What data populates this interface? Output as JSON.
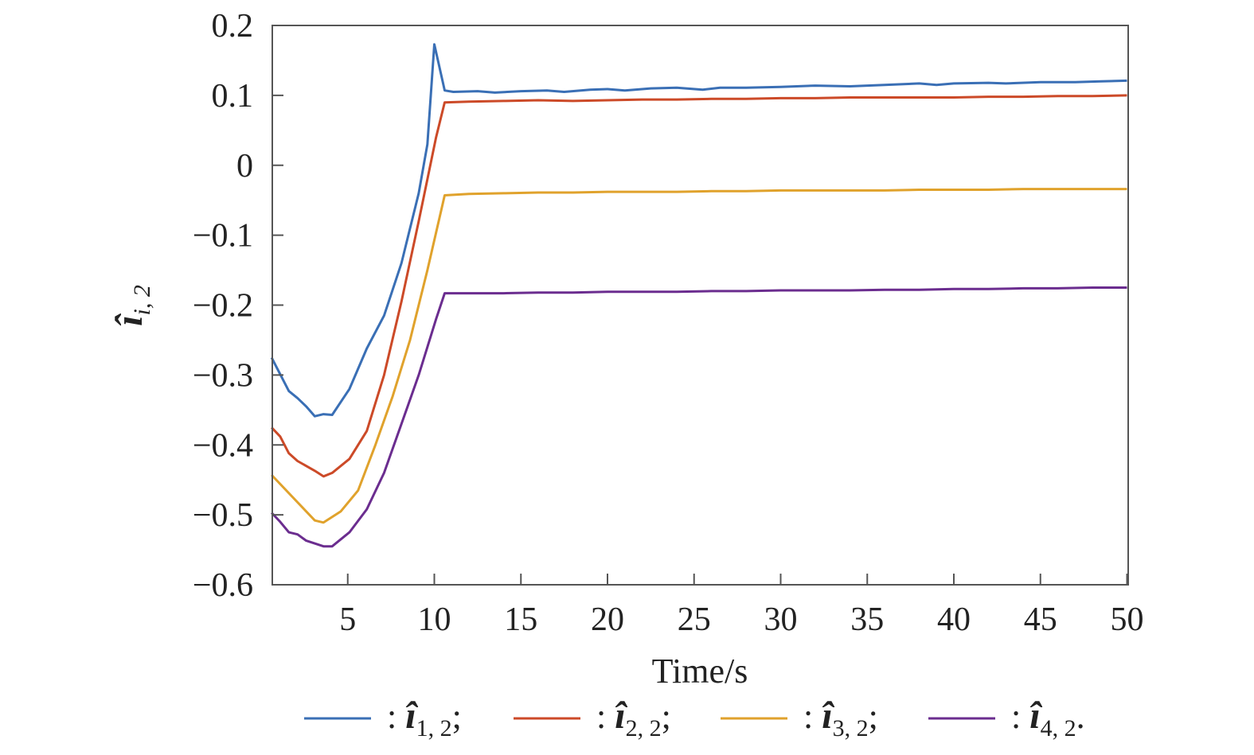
{
  "chart_data": {
    "type": "line",
    "title": "",
    "xlabel": "Time/s",
    "ylabel": {
      "symbol": "î",
      "subscript": "i, 2"
    },
    "xlim": [
      0.6,
      50
    ],
    "ylim": [
      -0.6,
      0.2
    ],
    "xticks": [
      5,
      10,
      15,
      20,
      25,
      30,
      35,
      40,
      45,
      50
    ],
    "xtick_labels": [
      "5",
      "10",
      "15",
      "20",
      "25",
      "30",
      "35",
      "40",
      "45",
      "50"
    ],
    "yticks": [
      0.2,
      0.1,
      0,
      -0.1,
      -0.2,
      -0.3,
      -0.4,
      -0.5,
      -0.6
    ],
    "ytick_labels": [
      "0.2",
      "0.1",
      "0",
      "−0.1",
      "−0.2",
      "−0.3",
      "−0.4",
      "−0.5",
      "−0.6"
    ],
    "grid": false,
    "legend_position": "bottom",
    "series": [
      {
        "name": "î_{1,2}",
        "legend_sep": ":",
        "legend_symbol": "î",
        "legend_sub": "1, 2",
        "legend_end": ";",
        "color": "#3a6fb5",
        "x": [
          0.6,
          1.6,
          2.1,
          2.6,
          3.1,
          3.6,
          4.1,
          5.1,
          6.1,
          7.1,
          8.1,
          9.1,
          9.6,
          10.0,
          10.6,
          11.1,
          12.5,
          13.5,
          15,
          16.5,
          17.5,
          19,
          20,
          21,
          22.5,
          24,
          25.5,
          26.5,
          28,
          30,
          32,
          34,
          36,
          38,
          39,
          40,
          42,
          43,
          45,
          47,
          48.5,
          50
        ],
        "y": [
          -0.275,
          -0.323,
          -0.333,
          -0.345,
          -0.359,
          -0.356,
          -0.357,
          -0.32,
          -0.262,
          -0.215,
          -0.14,
          -0.04,
          0.03,
          0.173,
          0.107,
          0.105,
          0.106,
          0.104,
          0.106,
          0.107,
          0.105,
          0.108,
          0.109,
          0.107,
          0.11,
          0.111,
          0.108,
          0.111,
          0.111,
          0.112,
          0.114,
          0.113,
          0.115,
          0.117,
          0.115,
          0.117,
          0.118,
          0.117,
          0.119,
          0.119,
          0.12,
          0.121
        ]
      },
      {
        "name": "î_{2,2}",
        "legend_sep": ":",
        "legend_symbol": "î",
        "legend_sub": "2, 2",
        "legend_end": ";",
        "color": "#cc4a28",
        "x": [
          0.6,
          1.1,
          1.6,
          2.1,
          3.1,
          3.6,
          4.1,
          5.1,
          6.1,
          7.1,
          8.1,
          9.1,
          10.1,
          10.6,
          12,
          14,
          16,
          18,
          20,
          22,
          24,
          26,
          28,
          30,
          32,
          34,
          36,
          38,
          40,
          42,
          44,
          46,
          48,
          50
        ],
        "y": [
          -0.375,
          -0.388,
          -0.412,
          -0.423,
          -0.437,
          -0.445,
          -0.44,
          -0.42,
          -0.38,
          -0.3,
          -0.195,
          -0.08,
          0.04,
          0.09,
          0.091,
          0.092,
          0.093,
          0.092,
          0.093,
          0.094,
          0.094,
          0.095,
          0.095,
          0.096,
          0.096,
          0.097,
          0.097,
          0.097,
          0.097,
          0.098,
          0.098,
          0.099,
          0.099,
          0.1
        ]
      },
      {
        "name": "î_{3,2}",
        "legend_sep": ":",
        "legend_symbol": "î",
        "legend_sub": "3, 2",
        "legend_end": ";",
        "color": "#e0a22c",
        "x": [
          0.6,
          3.1,
          3.6,
          4.6,
          5.6,
          6.6,
          7.6,
          8.6,
          9.6,
          10.6,
          12,
          14,
          16,
          18,
          20,
          22,
          24,
          26,
          28,
          30,
          32,
          34,
          36,
          38,
          40,
          42,
          44,
          46,
          48,
          50
        ],
        "y": [
          -0.443,
          -0.508,
          -0.511,
          -0.495,
          -0.465,
          -0.4,
          -0.33,
          -0.25,
          -0.15,
          -0.043,
          -0.041,
          -0.04,
          -0.039,
          -0.039,
          -0.038,
          -0.038,
          -0.038,
          -0.037,
          -0.037,
          -0.036,
          -0.036,
          -0.036,
          -0.036,
          -0.035,
          -0.035,
          -0.035,
          -0.034,
          -0.034,
          -0.034,
          -0.034
        ]
      },
      {
        "name": "î_{4,2}",
        "legend_sep": ":",
        "legend_symbol": "î",
        "legend_sub": "4, 2",
        "legend_end": ".",
        "color": "#6b2d8f",
        "x": [
          0.6,
          1.1,
          1.6,
          2.1,
          2.6,
          3.6,
          4.1,
          5.1,
          6.1,
          7.1,
          8.1,
          9.1,
          10.1,
          10.6,
          12,
          14,
          16,
          18,
          20,
          22,
          24,
          26,
          28,
          30,
          32,
          34,
          36,
          38,
          40,
          42,
          44,
          46,
          48,
          50
        ],
        "y": [
          -0.497,
          -0.51,
          -0.525,
          -0.528,
          -0.537,
          -0.545,
          -0.545,
          -0.525,
          -0.492,
          -0.44,
          -0.37,
          -0.3,
          -0.22,
          -0.183,
          -0.183,
          -0.183,
          -0.182,
          -0.182,
          -0.181,
          -0.181,
          -0.181,
          -0.18,
          -0.18,
          -0.179,
          -0.179,
          -0.179,
          -0.178,
          -0.178,
          -0.177,
          -0.177,
          -0.176,
          -0.176,
          -0.175,
          -0.175
        ]
      }
    ]
  }
}
